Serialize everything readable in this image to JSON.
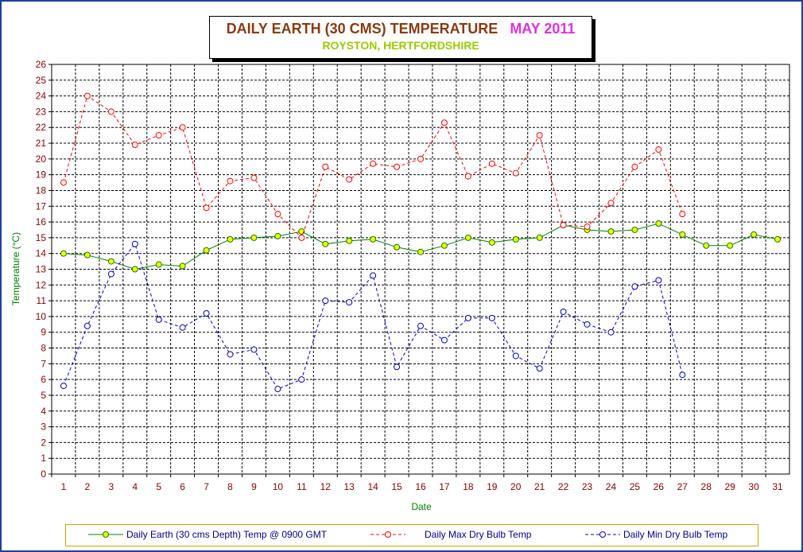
{
  "header": {
    "title": "DAILY EARTH (30 CMS) TEMPERATURE",
    "month": "MAY 2011",
    "subtitle": "ROYSTON, HERTFORDSHIRE"
  },
  "colors": {
    "title": "#8b3a10",
    "month": "#e22ee2",
    "subtitle": "#99cc00",
    "axis_title": "#008000",
    "tick_label": "#8b0000",
    "earth": "#008000",
    "earth_marker": "#ffff00",
    "max": "#ff0000",
    "min": "#0000cc",
    "frame": "#1d3f9e",
    "legend_border": "#c8a400"
  },
  "chart_data": {
    "type": "line",
    "title": "DAILY EARTH (30 CMS) TEMPERATURE",
    "subtitle": "ROYSTON, HERTFORDSHIRE",
    "xlabel": "Date",
    "ylabel": "Temperature (°C)",
    "ylim": [
      0,
      26
    ],
    "ystep": 1,
    "grid": true,
    "legend_position": "bottom",
    "categories": [
      "1",
      "2",
      "3",
      "4",
      "5",
      "6",
      "7",
      "8",
      "9",
      "10",
      "11",
      "12",
      "13",
      "14",
      "15",
      "16",
      "17",
      "18",
      "19",
      "20",
      "21",
      "22",
      "23",
      "24",
      "25",
      "26",
      "27",
      "28",
      "29",
      "30",
      "31"
    ],
    "series": [
      {
        "name": "Daily Earth (30 cms Depth) Temp @ 0900 GMT",
        "style": "solid",
        "values": [
          14.0,
          13.9,
          13.5,
          13.0,
          13.3,
          13.2,
          14.2,
          14.9,
          15.0,
          15.1,
          15.4,
          14.6,
          14.8,
          14.9,
          14.4,
          14.1,
          14.5,
          15.0,
          14.7,
          14.9,
          15.0,
          15.8,
          15.5,
          15.4,
          15.5,
          15.9,
          15.2,
          14.5,
          14.5,
          15.2,
          14.9
        ]
      },
      {
        "name": "Daily Max Dry Bulb Temp",
        "style": "dashed",
        "values": [
          18.5,
          24.0,
          23.0,
          20.9,
          21.5,
          22.0,
          16.9,
          18.6,
          18.8,
          16.5,
          15.0,
          19.5,
          18.7,
          19.7,
          19.5,
          20.0,
          22.3,
          18.9,
          19.7,
          19.1,
          21.5,
          15.8,
          15.7,
          17.2,
          19.5,
          20.6,
          16.5,
          null,
          null,
          null,
          null
        ]
      },
      {
        "name": "Daily Min Dry Bulb Temp",
        "style": "dashed",
        "values": [
          5.6,
          9.4,
          12.7,
          14.6,
          9.8,
          9.3,
          10.2,
          7.6,
          7.9,
          5.4,
          6.0,
          11.0,
          10.9,
          12.6,
          6.8,
          9.4,
          8.5,
          9.9,
          9.9,
          7.5,
          6.7,
          10.3,
          9.5,
          9.0,
          11.9,
          12.3,
          6.3,
          null,
          null,
          null,
          null
        ]
      }
    ]
  }
}
